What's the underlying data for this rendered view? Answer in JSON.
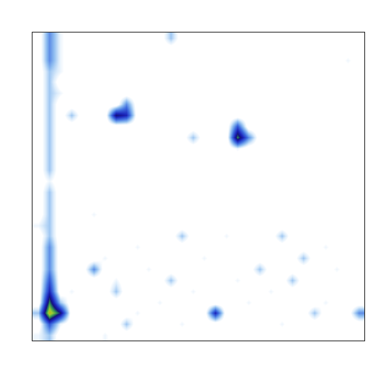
{
  "chart_data": {
    "type": "heatmap",
    "xlim": [
      -0.5,
      29.5
    ],
    "ylim": [
      27.5,
      -0.5
    ],
    "zlim": [
      0,
      10
    ],
    "tick_labels": false,
    "grid": false,
    "cells": [
      [
        0,
        3,
        1,
        0,
        0,
        0,
        0,
        0,
        0,
        0,
        0,
        0,
        2,
        0,
        0,
        0,
        0,
        0,
        0,
        0,
        0,
        0,
        0,
        0,
        0,
        0,
        0,
        0,
        0,
        0
      ],
      [
        0,
        3,
        1,
        0,
        0,
        0,
        0,
        0,
        0,
        0,
        0,
        0,
        0,
        0,
        0,
        0,
        0,
        0,
        0,
        0,
        0,
        0,
        0,
        0,
        0,
        0,
        0,
        0,
        0,
        0
      ],
      [
        0,
        3,
        1,
        0,
        0,
        0,
        0,
        0,
        0,
        0,
        0,
        0,
        0,
        0,
        0,
        0,
        0,
        0,
        0,
        0,
        0,
        0,
        0,
        0,
        0,
        0,
        0,
        0,
        1,
        0
      ],
      [
        0,
        2,
        1,
        0,
        0,
        0,
        0,
        0,
        0,
        0,
        0,
        0,
        0,
        0,
        0,
        0,
        0,
        0,
        0,
        0,
        0,
        0,
        0,
        0,
        0,
        0,
        0,
        0,
        0,
        0
      ],
      [
        0,
        2,
        0,
        0,
        0,
        0,
        0,
        0,
        0,
        0,
        0,
        0,
        0,
        0,
        0,
        0,
        0,
        0,
        0,
        0,
        0,
        0,
        0,
        0,
        0,
        0,
        0,
        0,
        0,
        0
      ],
      [
        0,
        2,
        1,
        0,
        0,
        0,
        0,
        0,
        0,
        0,
        0,
        0,
        0,
        0,
        0,
        0,
        0,
        0,
        0,
        0,
        0,
        0,
        0,
        0,
        0,
        0,
        0,
        0,
        0,
        0
      ],
      [
        0,
        2,
        0,
        0,
        0,
        0,
        0,
        0,
        3,
        0,
        0,
        0,
        0,
        0,
        0,
        0,
        0,
        0,
        0,
        0,
        0,
        0,
        0,
        0,
        0,
        0,
        0,
        0,
        0,
        0
      ],
      [
        0,
        2,
        0,
        2,
        0,
        0,
        0,
        6,
        5,
        0,
        0,
        0,
        0,
        0,
        0,
        0,
        0,
        0,
        0,
        0,
        0,
        0,
        0,
        0,
        0,
        0,
        0,
        0,
        0,
        0
      ],
      [
        0,
        2,
        0,
        0,
        0,
        0,
        0,
        0,
        0,
        0,
        0,
        0,
        0,
        0,
        0,
        0,
        0,
        0,
        4,
        0,
        0,
        0,
        0,
        0,
        0,
        0,
        0,
        0,
        0,
        0
      ],
      [
        0,
        2,
        0,
        0,
        0,
        0,
        0,
        0,
        0,
        0,
        0,
        0,
        0,
        0,
        2,
        0,
        0,
        0,
        7,
        3,
        0,
        0,
        0,
        0,
        0,
        0,
        0,
        0,
        0,
        0
      ],
      [
        0,
        2,
        0,
        0,
        0,
        0,
        0,
        0,
        0,
        0,
        0,
        0,
        0,
        0,
        0,
        0,
        0,
        0,
        1,
        0,
        0,
        0,
        0,
        0,
        0,
        0,
        0,
        0,
        0,
        0
      ],
      [
        0,
        2,
        0,
        0,
        0,
        0,
        0,
        0,
        0,
        0,
        0,
        0,
        0,
        0,
        0,
        0,
        0,
        0,
        0,
        0,
        0,
        0,
        0,
        0,
        0,
        0,
        0,
        0,
        0,
        0
      ],
      [
        0,
        2,
        0,
        0,
        0,
        0,
        0,
        0,
        0,
        0,
        0,
        0,
        0,
        0,
        0,
        0,
        0,
        0,
        0,
        0,
        0,
        0,
        0,
        0,
        0,
        0,
        0,
        0,
        0,
        0
      ],
      [
        0,
        1,
        0,
        0,
        0,
        0,
        0,
        0,
        0,
        0,
        0,
        0,
        0,
        0,
        0,
        0,
        0,
        0,
        0,
        0,
        0,
        0,
        0,
        0,
        0,
        0,
        0,
        0,
        0,
        0
      ],
      [
        0,
        2,
        0,
        0,
        0,
        0,
        0,
        0,
        0,
        0,
        0,
        0,
        0,
        0,
        0,
        0,
        0,
        0,
        0,
        0,
        0,
        0,
        0,
        0,
        0,
        0,
        0,
        0,
        0,
        0
      ],
      [
        0,
        2,
        0,
        0,
        0,
        0,
        0,
        0,
        0,
        0,
        0,
        0,
        0,
        0,
        0,
        0,
        0,
        0,
        0,
        0,
        0,
        0,
        0,
        0,
        0,
        0,
        0,
        0,
        0,
        0
      ],
      [
        0,
        2,
        0,
        0,
        0,
        1,
        0,
        0,
        0,
        0,
        0,
        0,
        0,
        0,
        0,
        0,
        0,
        0,
        0,
        0,
        0,
        0,
        0,
        0,
        0,
        0,
        0,
        0,
        0,
        0
      ],
      [
        1,
        2,
        0,
        0,
        0,
        0,
        0,
        0,
        0,
        0,
        0,
        0,
        0,
        0,
        0,
        0,
        0,
        0,
        0,
        0,
        0,
        0,
        0,
        0,
        0,
        0,
        0,
        0,
        0,
        0
      ],
      [
        0,
        2,
        0,
        0,
        0,
        0,
        0,
        0,
        0,
        0,
        0,
        0,
        0,
        2,
        0,
        0,
        0,
        1,
        0,
        0,
        0,
        0,
        2,
        0,
        0,
        0,
        0,
        0,
        0,
        0
      ],
      [
        0,
        3,
        0,
        0,
        0,
        0,
        0,
        0,
        0,
        1,
        0,
        0,
        0,
        0,
        0,
        0,
        0,
        0,
        0,
        0,
        0,
        0,
        0,
        0,
        0,
        0,
        1,
        0,
        0,
        0
      ],
      [
        0,
        3,
        0,
        0,
        0,
        0,
        1,
        0,
        0,
        0,
        0,
        0,
        0,
        0,
        0,
        1,
        0,
        0,
        0,
        0,
        0,
        0,
        0,
        0,
        2,
        0,
        0,
        0,
        0,
        0
      ],
      [
        0,
        3,
        0,
        0,
        0,
        3,
        0,
        0,
        0,
        0,
        1,
        0,
        0,
        0,
        0,
        0,
        0,
        0,
        0,
        0,
        2,
        0,
        0,
        0,
        0,
        0,
        0,
        1,
        0,
        0
      ],
      [
        0,
        4,
        0,
        0,
        0,
        0,
        0,
        1,
        0,
        0,
        0,
        0,
        2,
        0,
        0,
        0,
        0,
        0,
        1,
        0,
        0,
        0,
        0,
        2,
        0,
        0,
        0,
        0,
        0,
        0
      ],
      [
        0,
        5,
        0,
        1,
        0,
        0,
        0,
        2,
        0,
        0,
        0,
        0,
        0,
        0,
        1,
        0,
        0,
        0,
        0,
        0,
        0,
        1,
        0,
        0,
        0,
        0,
        0,
        0,
        0,
        0
      ],
      [
        0,
        7,
        2,
        0,
        0,
        0,
        0,
        0,
        0,
        0,
        0,
        1,
        0,
        0,
        0,
        0,
        0,
        0,
        0,
        1,
        0,
        0,
        0,
        0,
        0,
        0,
        1,
        0,
        0,
        0
      ],
      [
        2,
        9,
        6,
        0,
        0,
        0,
        0,
        0,
        0,
        1,
        0,
        0,
        0,
        0,
        0,
        0,
        5,
        0,
        0,
        0,
        0,
        0,
        0,
        0,
        0,
        2,
        0,
        0,
        0,
        3
      ],
      [
        0,
        4,
        1,
        0,
        0,
        0,
        0,
        0,
        2,
        0,
        0,
        0,
        0,
        1,
        0,
        0,
        0,
        0,
        0,
        0,
        0,
        0,
        1,
        0,
        0,
        0,
        0,
        0,
        0,
        0
      ],
      [
        1,
        2,
        0,
        0,
        0,
        0,
        1,
        0,
        0,
        0,
        0,
        0,
        0,
        0,
        0,
        0,
        0,
        0,
        0,
        0,
        0,
        0,
        0,
        0,
        0,
        0,
        0,
        0,
        0,
        0
      ]
    ]
  }
}
